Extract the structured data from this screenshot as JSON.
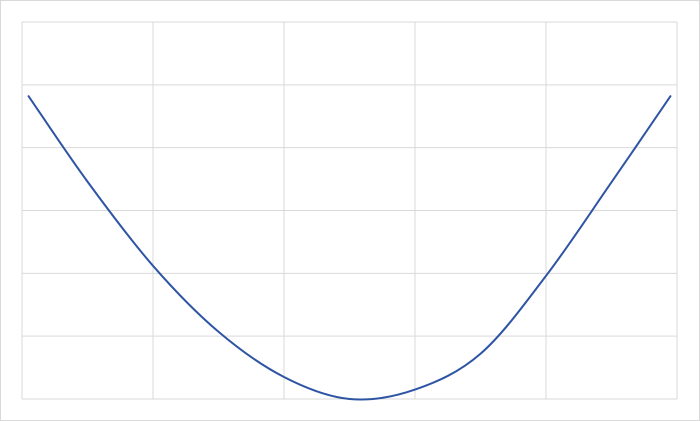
{
  "chart_data": {
    "type": "line",
    "title": "",
    "xlabel": "",
    "ylabel": "",
    "xlim": [
      0,
      5
    ],
    "ylim": [
      0,
      6
    ],
    "grid": true,
    "legend": "none",
    "series": [
      {
        "color": "#2e55a4",
        "x": [
          0.05,
          0.5,
          1.0,
          1.5,
          2.0,
          2.5,
          3.0,
          3.5,
          4.0,
          4.5,
          4.95
        ],
        "y": [
          4.82,
          3.46,
          2.12,
          1.07,
          0.35,
          0.0,
          0.15,
          0.72,
          1.96,
          3.45,
          4.82
        ]
      }
    ]
  }
}
